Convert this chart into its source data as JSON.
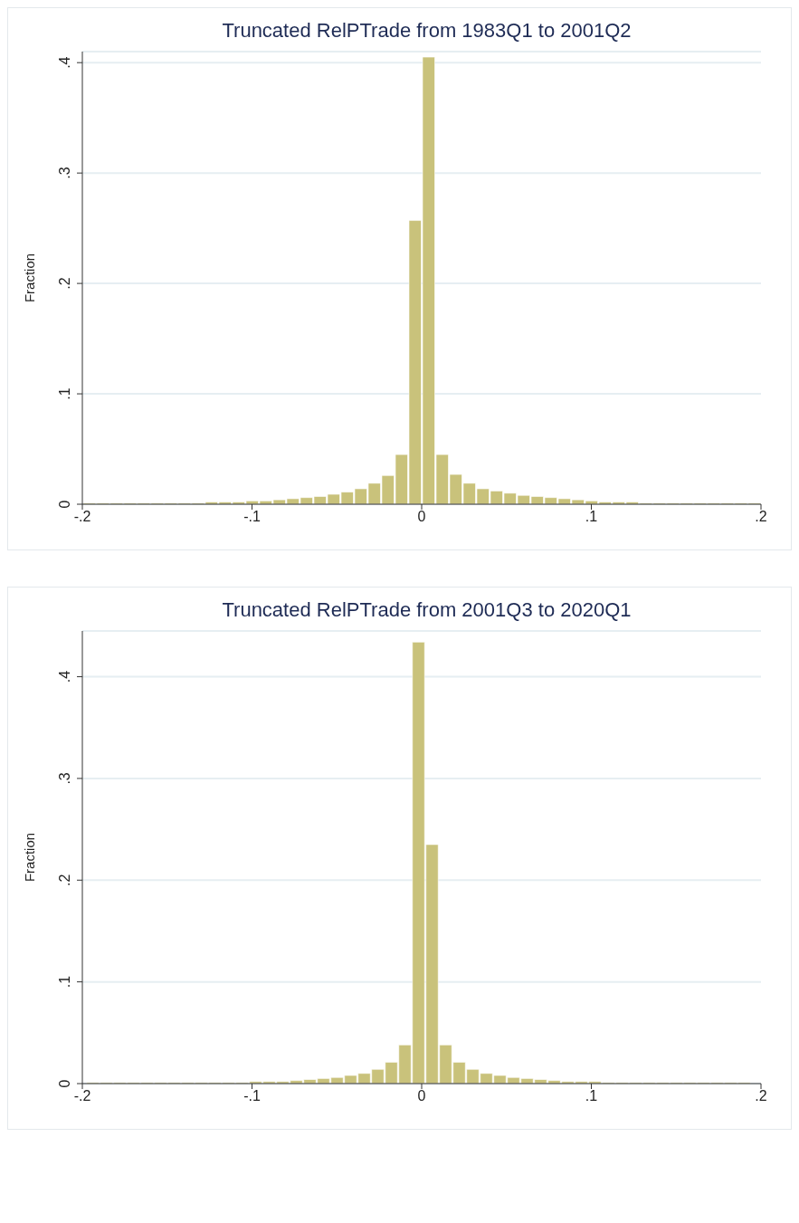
{
  "chart_data": [
    {
      "type": "histogram",
      "title": "Truncated RelPTrade from 1983Q1 to 2001Q2",
      "ylabel": "Fraction",
      "color": "#c9c27b",
      "grid": "y",
      "bins": [
        -0.2,
        -0.192,
        -0.184,
        -0.176,
        -0.168,
        -0.16,
        -0.152,
        -0.144,
        -0.136,
        -0.128,
        -0.12,
        -0.112,
        -0.104,
        -0.096,
        -0.088,
        -0.08,
        -0.072,
        -0.064,
        -0.056,
        -0.048,
        -0.04,
        -0.032,
        -0.024,
        -0.016,
        -0.008,
        0,
        0.008,
        0.016,
        0.024,
        0.032,
        0.04,
        0.048,
        0.056,
        0.064,
        0.072,
        0.08,
        0.088,
        0.096,
        0.104,
        0.112,
        0.12,
        0.128,
        0.136,
        0.144,
        0.152,
        0.16,
        0.168,
        0.176,
        0.184,
        0.192,
        0.2
      ],
      "values": [
        0.001,
        0.001,
        0.001,
        0.001,
        0.001,
        0.001,
        0.001,
        0.001,
        0.001,
        0.002,
        0.002,
        0.002,
        0.003,
        0.003,
        0.004,
        0.005,
        0.006,
        0.007,
        0.009,
        0.011,
        0.014,
        0.019,
        0.026,
        0.045,
        0.257,
        0.405,
        0.045,
        0.027,
        0.019,
        0.014,
        0.012,
        0.01,
        0.008,
        0.007,
        0.006,
        0.005,
        0.004,
        0.003,
        0.002,
        0.002,
        0.002,
        0.001,
        0.001,
        0.001,
        0.001,
        0.001,
        0.001,
        0.001,
        0.001,
        0.001
      ],
      "xlim": [
        -0.2,
        0.2
      ],
      "xticks": [
        {
          "value": -0.2,
          "label": "-.2"
        },
        {
          "value": -0.1,
          "label": "-.1"
        },
        0,
        {
          "value": 0.1,
          "label": ".1"
        },
        {
          "value": 0.2,
          "label": ".2"
        }
      ],
      "ylim": [
        0,
        0.41
      ],
      "yticks": [
        0,
        {
          "value": 0.1,
          "label": ".1"
        },
        {
          "value": 0.2,
          "label": ".2"
        },
        {
          "value": 0.3,
          "label": ".3"
        },
        {
          "value": 0.4,
          "label": ".4"
        }
      ]
    },
    {
      "type": "histogram",
      "title": "Truncated RelPTrade from 2001Q3 to 2020Q1",
      "ylabel": "Fraction",
      "color": "#c9c27b",
      "grid": "y",
      "bins": [
        -0.198,
        -0.19,
        -0.182,
        -0.174,
        -0.166,
        -0.158,
        -0.15,
        -0.142,
        -0.134,
        -0.126,
        -0.118,
        -0.11,
        -0.102,
        -0.094,
        -0.086,
        -0.078,
        -0.07,
        -0.062,
        -0.054,
        -0.046,
        -0.038,
        -0.03,
        -0.022,
        -0.014,
        -0.006,
        0.002,
        0.01,
        0.018,
        0.026,
        0.034,
        0.042,
        0.05,
        0.058,
        0.066,
        0.074,
        0.082,
        0.09,
        0.098,
        0.106,
        0.114,
        0.122,
        0.13,
        0.138,
        0.146,
        0.154,
        0.162,
        0.17,
        0.178,
        0.186,
        0.194
      ],
      "values": [
        0.001,
        0.001,
        0.001,
        0.001,
        0.001,
        0.001,
        0.001,
        0.001,
        0.001,
        0.001,
        0.001,
        0.001,
        0.002,
        0.002,
        0.002,
        0.003,
        0.004,
        0.005,
        0.006,
        0.008,
        0.01,
        0.014,
        0.021,
        0.038,
        0.434,
        0.235,
        0.038,
        0.021,
        0.014,
        0.01,
        0.008,
        0.006,
        0.005,
        0.004,
        0.003,
        0.002,
        0.002,
        0.002,
        0.001,
        0.001,
        0.001,
        0.001,
        0.001,
        0.001,
        0.001,
        0.001,
        0.001,
        0.001,
        0.001
      ],
      "xlim": [
        -0.2,
        0.2
      ],
      "xticks": [
        {
          "value": -0.2,
          "label": "-.2"
        },
        {
          "value": -0.1,
          "label": "-.1"
        },
        0,
        {
          "value": 0.1,
          "label": ".1"
        },
        {
          "value": 0.2,
          "label": ".2"
        }
      ],
      "ylim": [
        0,
        0.445
      ],
      "yticks": [
        0,
        {
          "value": 0.1,
          "label": ".1"
        },
        {
          "value": 0.2,
          "label": ".2"
        },
        {
          "value": 0.3,
          "label": ".3"
        },
        {
          "value": 0.4,
          "label": ".4"
        }
      ]
    }
  ]
}
